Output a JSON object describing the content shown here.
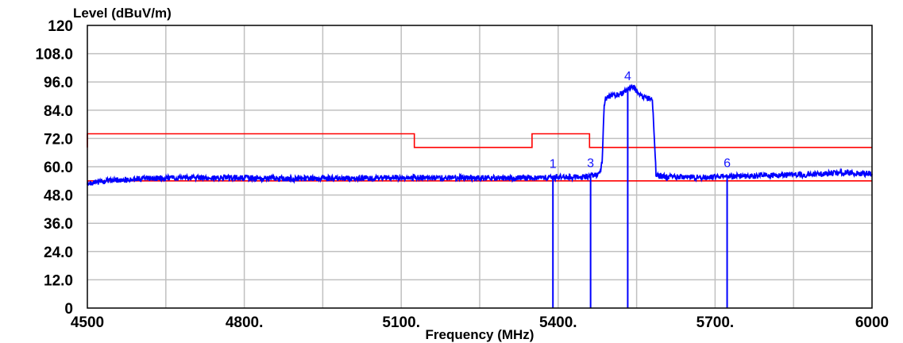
{
  "chart_data": {
    "type": "line",
    "ylabel": "Level (dBuV/m)",
    "xlabel": "Frequency (MHz)",
    "xlim": [
      4500,
      6000
    ],
    "ylim": [
      0,
      120
    ],
    "x_ticks": [
      4500,
      4650,
      4800,
      4950,
      5100,
      5250,
      5400,
      5550,
      5700,
      5850,
      6000
    ],
    "x_tick_labels": [
      "4500",
      "",
      "4800.",
      "",
      "5100.",
      "",
      "5400.",
      "",
      "5700.",
      "",
      "6000"
    ],
    "y_ticks": [
      0,
      12,
      24,
      36,
      48,
      60,
      72,
      84,
      96,
      108,
      120
    ],
    "y_tick_labels": [
      "0",
      "12.0",
      "24.0",
      "36.0",
      "48.0",
      "60.0",
      "72.0",
      "84.0",
      "96.0",
      "108.0",
      "120"
    ],
    "grid": true,
    "colors": {
      "limit": "#ff0000",
      "trace": "#0000ff",
      "grid": "#c0c0c0",
      "marker_text": "#1414ff"
    },
    "series": [
      {
        "role": "limit-line-upper",
        "x": [
          4500,
          4500,
          5125,
          5125,
          5350,
          5350,
          5460,
          5460,
          6000
        ],
        "y": [
          68.2,
          74,
          74,
          68.2,
          68.2,
          74,
          74,
          68.2,
          68.2
        ]
      },
      {
        "role": "limit-line-lower",
        "x": [
          4500,
          6000
        ],
        "y": [
          54,
          54
        ]
      },
      {
        "role": "measured-trace",
        "x": [
          4500,
          4520,
          4560,
          4600,
          4650,
          4700,
          4800,
          4900,
          5000,
          5100,
          5200,
          5300,
          5350,
          5390,
          5420,
          5455,
          5480,
          5484,
          5488,
          5490,
          5500,
          5510,
          5520,
          5530,
          5535,
          5540,
          5545,
          5550,
          5555,
          5560,
          5565,
          5570,
          5575,
          5580,
          5584,
          5587,
          5600,
          5650,
          5700,
          5750,
          5800,
          5850,
          5900,
          5950,
          6000
        ],
        "y": [
          53,
          53.5,
          54.3,
          55,
          55.2,
          55.3,
          55.2,
          55,
          55.1,
          55.4,
          55.3,
          55.2,
          55.2,
          55.5,
          55.6,
          55.8,
          57,
          62,
          86,
          89,
          90,
          90.5,
          91,
          92,
          93,
          94,
          93.5,
          92,
          91,
          90,
          89.3,
          89,
          88.8,
          88.5,
          72,
          57,
          55.8,
          55.5,
          55.6,
          56,
          56.3,
          56.5,
          56.9,
          57.4,
          57
        ]
      }
    ],
    "markers": [
      {
        "label": "1",
        "x": 5390,
        "y": 55.5
      },
      {
        "label": "3",
        "x": 5462,
        "y": 55.8
      },
      {
        "label": "4",
        "x": 5533,
        "y": 92.7
      },
      {
        "label": "6",
        "x": 5723,
        "y": 55.8
      }
    ]
  }
}
